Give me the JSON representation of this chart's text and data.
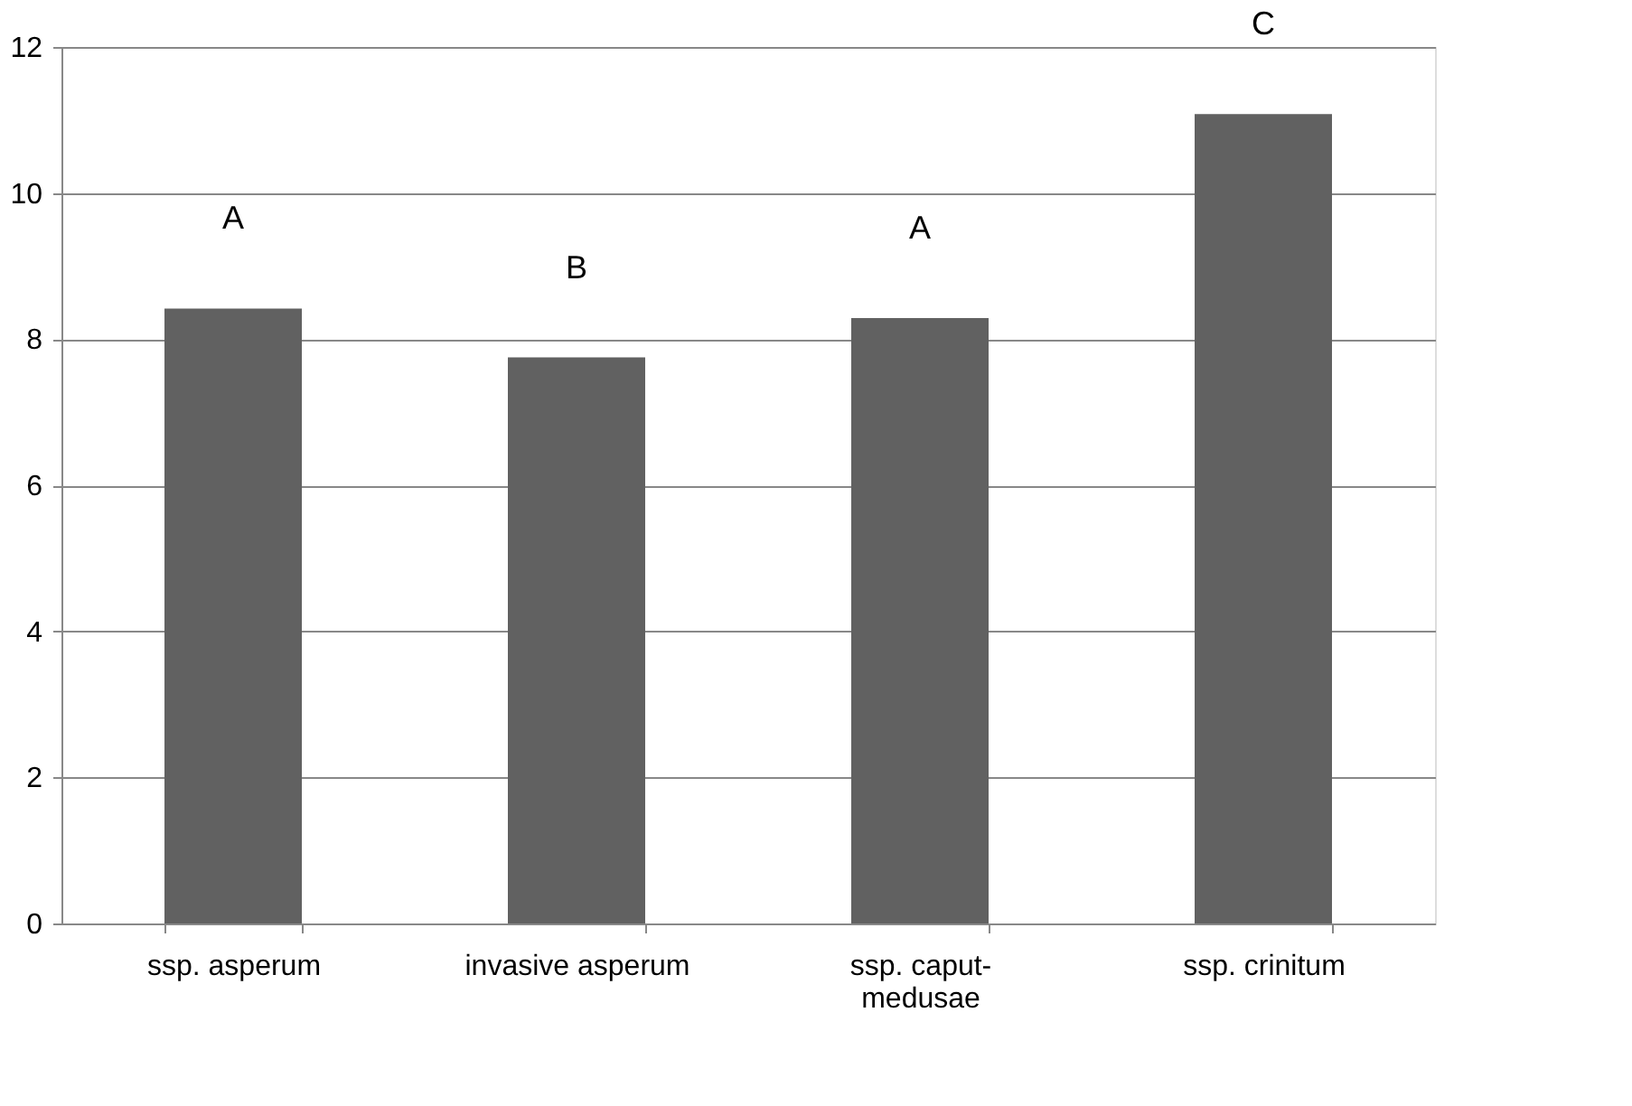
{
  "chart_data": {
    "type": "bar",
    "categories": [
      "ssp. asperum",
      "invasive asperum",
      "ssp. caput-medusae",
      "ssp. crinitum"
    ],
    "values": [
      8.42,
      7.75,
      8.29,
      11.08
    ],
    "color": "#616161",
    "ylim": [
      0,
      12
    ],
    "yticks": [
      0,
      2,
      4,
      6,
      8,
      10,
      12
    ],
    "grid": "y",
    "annotations": [
      "A",
      "B",
      "A",
      "C"
    ]
  }
}
